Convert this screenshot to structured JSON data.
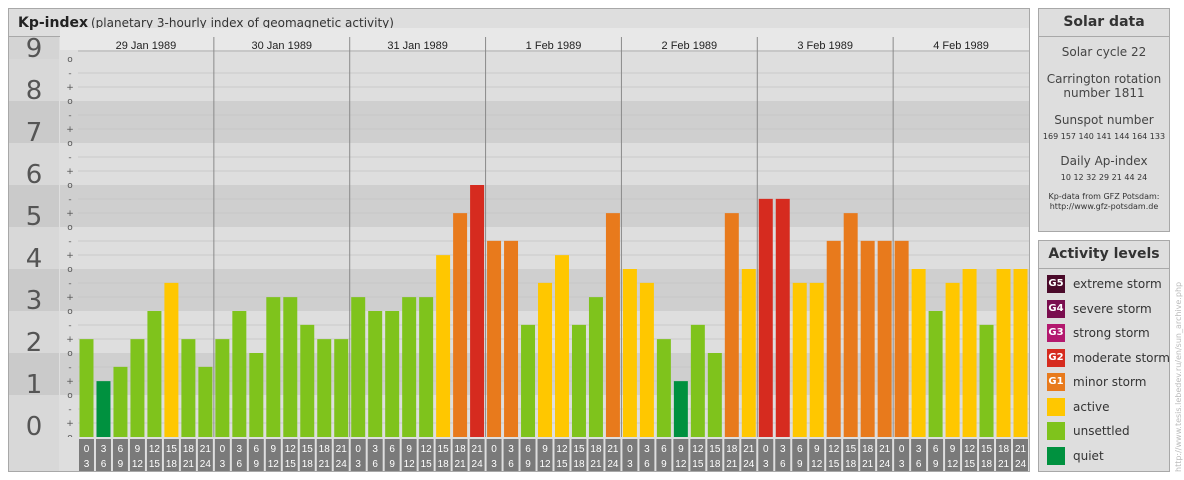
{
  "header": {
    "title": "Kp-index",
    "subtitle": "(planetary 3-hourly index of geomagnetic activity)"
  },
  "colors": {
    "quiet": "#00913f",
    "unsettled": "#7fc31c",
    "active": "#ffc700",
    "minor_storm": "#e87a1c",
    "moderate_storm": "#d62b1f",
    "strong_storm": "#b3186e",
    "severe_storm": "#7a0e4f",
    "extreme_storm": "#4a0a2a"
  },
  "chart_data": {
    "type": "bar",
    "ylim": [
      0,
      9
    ],
    "y_tick_labels": [
      "0",
      "1",
      "2",
      "3",
      "4",
      "5",
      "6",
      "7",
      "8",
      "9"
    ],
    "y_sub_labels": [
      "+",
      "o",
      "-"
    ],
    "days": [
      "29 Jan 1989",
      "30 Jan 1989",
      "31 Jan 1989",
      "1 Feb 1989",
      "2 Feb 1989",
      "3 Feb 1989",
      "4 Feb 1989"
    ],
    "hour_start_labels": [
      "0",
      "3",
      "6",
      "9",
      "12",
      "15",
      "18",
      "21"
    ],
    "hour_end_labels": [
      "3",
      "6",
      "9",
      "12",
      "15",
      "18",
      "21",
      "24"
    ],
    "values": [
      2.33,
      1.33,
      1.67,
      2.33,
      3.0,
      3.67,
      2.33,
      1.67,
      2.33,
      3.0,
      2.0,
      3.33,
      3.33,
      2.67,
      2.33,
      2.33,
      3.33,
      3.0,
      3.0,
      3.33,
      3.33,
      4.33,
      5.33,
      6.0,
      4.67,
      4.67,
      2.67,
      3.67,
      4.33,
      2.67,
      3.33,
      5.33,
      4.0,
      3.67,
      2.33,
      1.33,
      2.67,
      2.0,
      5.33,
      4.0,
      5.67,
      5.67,
      3.67,
      3.67,
      4.67,
      5.33,
      4.67,
      4.67,
      4.67,
      4.0,
      3.0,
      3.67,
      4.0,
      2.67,
      4.0,
      4.0
    ]
  },
  "solar": {
    "title": "Solar data",
    "cycle": "Solar cycle 22",
    "carrington_line1": "Carrington rotation",
    "carrington_line2": "number 1811",
    "sunspot_label": "Sunspot number",
    "sunspot_values": "169 157 140 141 144 164 133",
    "ap_label": "Daily Ap-index",
    "ap_values": "10   12   32   29   21   44   24",
    "credit_line1": "Kp-data from GFZ Potsdam:",
    "credit_line2": "http://www.gfz-potsdam.de"
  },
  "activity": {
    "title": "Activity levels",
    "items": [
      {
        "badge": "G5",
        "label": "extreme storm",
        "color": "#4a0a2a"
      },
      {
        "badge": "G4",
        "label": "severe storm",
        "color": "#7a0e4f"
      },
      {
        "badge": "G3",
        "label": "strong storm",
        "color": "#b3186e"
      },
      {
        "badge": "G2",
        "label": "moderate storm",
        "color": "#d62b1f"
      },
      {
        "badge": "G1",
        "label": "minor storm",
        "color": "#e87a1c"
      },
      {
        "badge": "",
        "label": "active",
        "color": "#ffc700"
      },
      {
        "badge": "",
        "label": "unsettled",
        "color": "#7fc31c"
      },
      {
        "badge": "",
        "label": "quiet",
        "color": "#00913f"
      }
    ]
  },
  "watermark": "http://www.tesis.lebedev.ru/en/sun_archive.php"
}
